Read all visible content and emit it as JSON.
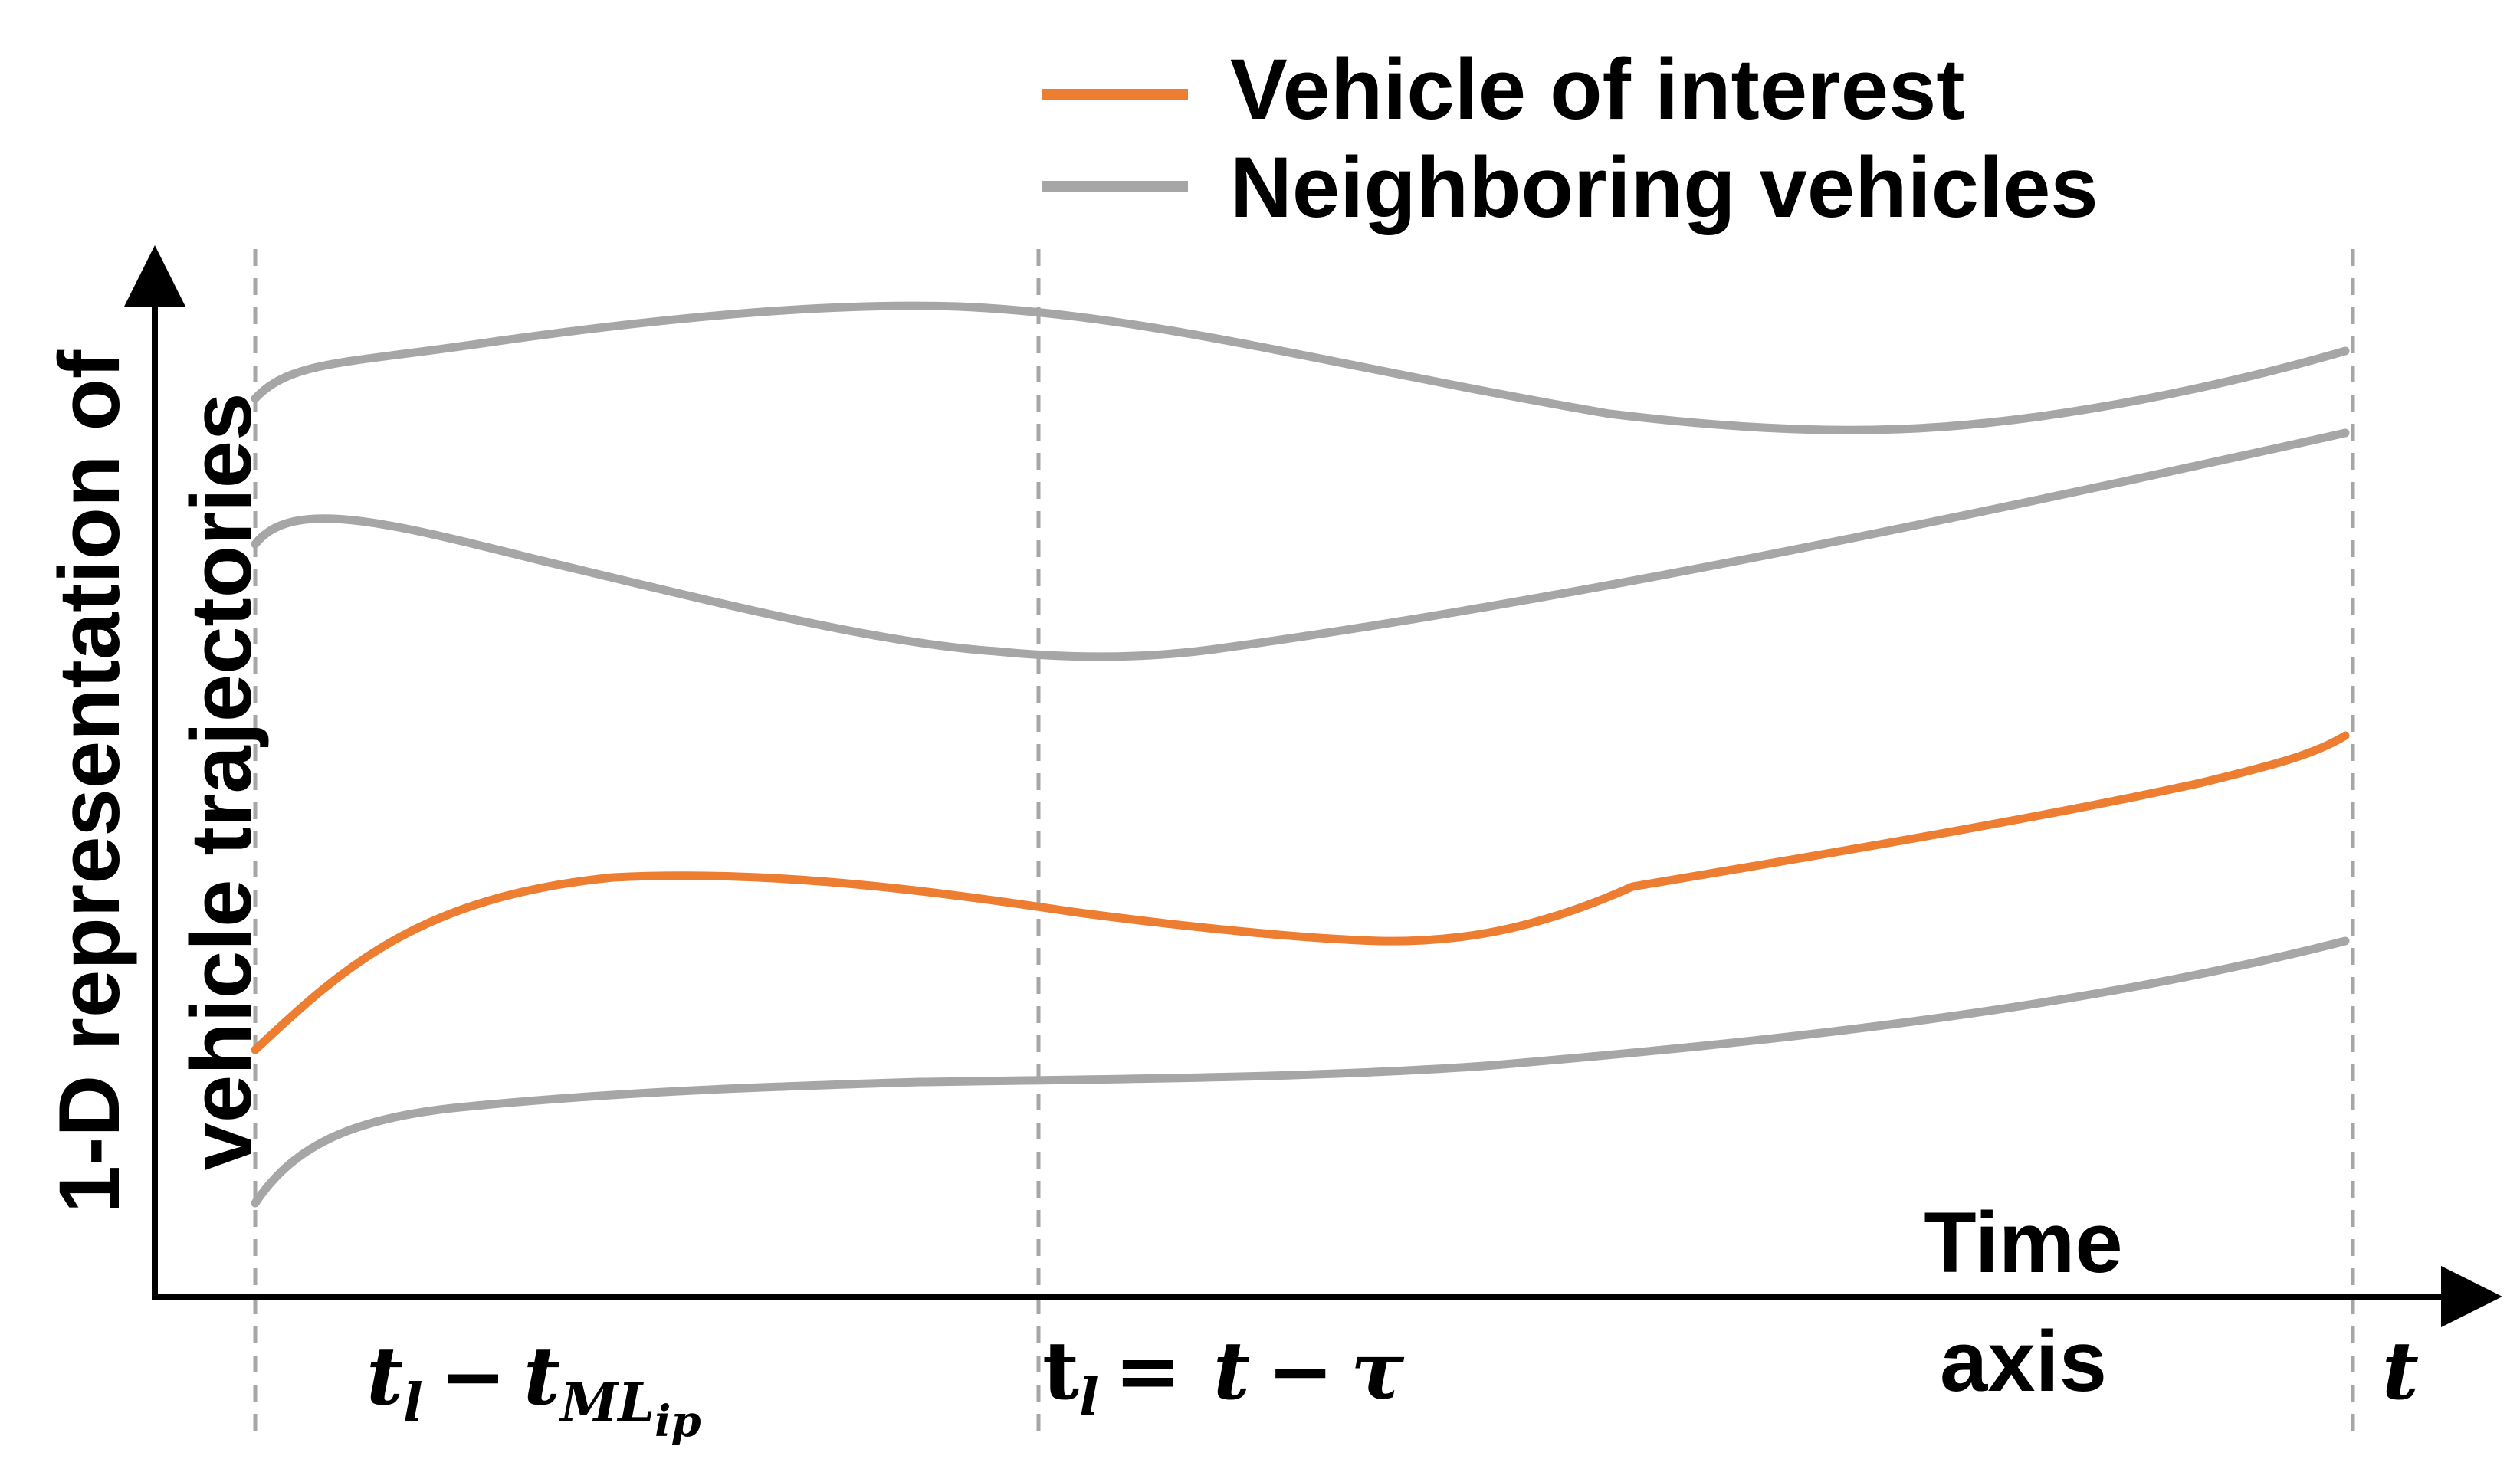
{
  "legend": {
    "items": [
      {
        "label": "Vehicle of interest",
        "color": "#ED7D31"
      },
      {
        "label": "Neighboring vehicles",
        "color": "#A6A6A6"
      }
    ]
  },
  "axes": {
    "y_label_line1": "1-D representation of",
    "y_label_line2": "vehicle trajectories",
    "x_label_line1": "Time",
    "x_label_line2": "axis",
    "x_symbol": "t"
  },
  "markers": {
    "m1": {
      "base": "t",
      "base_sub": "l",
      "minus": "−",
      "second": "t",
      "second_sub": "ML",
      "second_subsub": "ip"
    },
    "m2": {
      "base": "t",
      "base_sub": "l",
      "equals": "=",
      "t": "t",
      "minus": "−",
      "tau": "τ"
    }
  },
  "colors": {
    "interest": "#ED7D31",
    "neighbor": "#A6A6A6",
    "axis": "#000000",
    "guide": "#A6A6A6"
  }
}
